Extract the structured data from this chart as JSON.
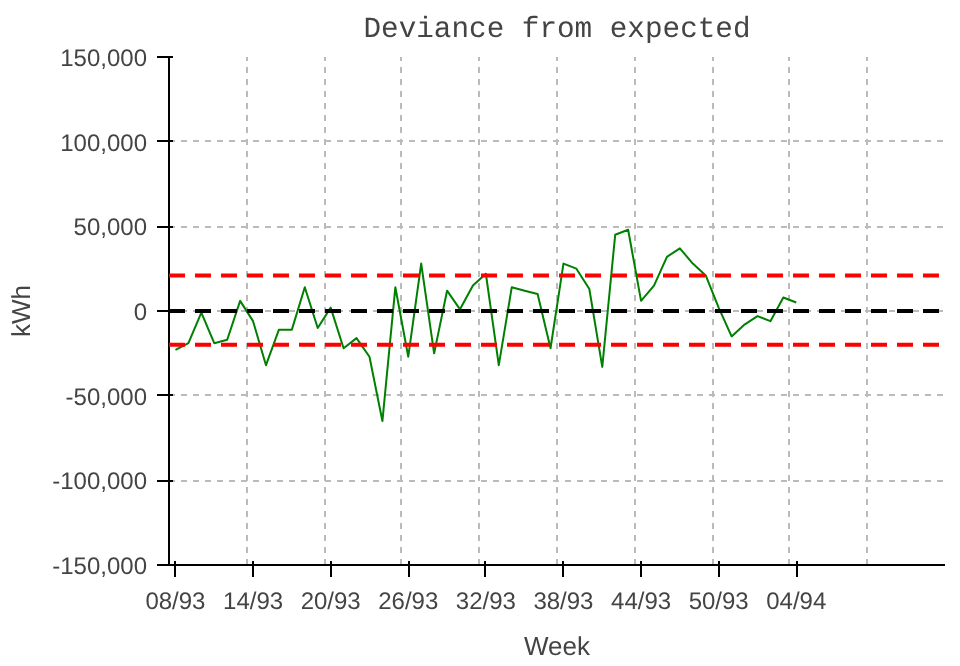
{
  "chart_data": {
    "type": "line",
    "title": "Deviance from expected",
    "xlabel": "Week",
    "ylabel": "kWh",
    "categories": [
      "08/93",
      null,
      null,
      null,
      null,
      null,
      "14/93",
      null,
      null,
      null,
      null,
      null,
      "20/93",
      null,
      null,
      null,
      null,
      null,
      "26/93",
      null,
      null,
      null,
      null,
      null,
      "32/93",
      null,
      null,
      null,
      null,
      null,
      "38/93",
      null,
      null,
      null,
      null,
      null,
      "44/93",
      null,
      null,
      null,
      null,
      null,
      "50/93",
      null,
      null,
      null,
      null,
      null,
      "04/94",
      null,
      null,
      null,
      null,
      null,
      null,
      null,
      null,
      null,
      null,
      null
    ],
    "series": [
      {
        "color": "#008000",
        "values": [
          -23000,
          -19000,
          -1000,
          -19000,
          -17000,
          6000,
          -6000,
          -32000,
          -11000,
          -11000,
          14000,
          -10000,
          2000,
          -22000,
          -16000,
          -27000,
          -65000,
          14000,
          -27000,
          28000,
          -25000,
          12000,
          1000,
          15000,
          22000,
          -32000,
          14000,
          12000,
          10000,
          -22000,
          28000,
          25000,
          13000,
          -33000,
          45000,
          48000,
          6000,
          15000,
          32000,
          37000,
          28000,
          21000,
          2000,
          -15000,
          -8000,
          -3000,
          -6000,
          8000,
          5000,
          null,
          null,
          null,
          null,
          null,
          null,
          null,
          null,
          null,
          null,
          null
        ]
      }
    ],
    "ylim": [
      -150000,
      150000
    ],
    "yticks": [
      {
        "value": -150000,
        "label": "-150,000"
      },
      {
        "value": -100000,
        "label": "-100,000"
      },
      {
        "value": -50000,
        "label": "-50,000"
      },
      {
        "value": 0,
        "label": "0"
      },
      {
        "value": 50000,
        "label": "50,000"
      },
      {
        "value": 100000,
        "label": "100,000"
      },
      {
        "value": 150000,
        "label": "150,000"
      }
    ],
    "ref_lines": [
      {
        "axis": "y",
        "value": 0,
        "color": "#000000",
        "line_style": "dashed"
      },
      {
        "axis": "y",
        "value": 21000,
        "color": "#ff0000",
        "line_style": "dashed"
      },
      {
        "axis": "y",
        "value": -20000,
        "color": "#ff0000",
        "line_style": "dashed"
      }
    ],
    "grid": true,
    "marker": "none",
    "line_style": "solid"
  }
}
